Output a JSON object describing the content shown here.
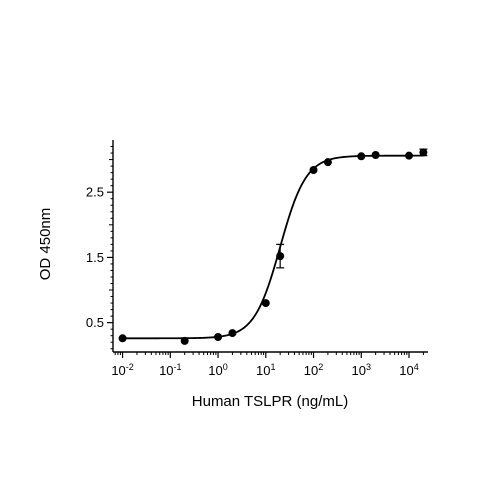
{
  "chart_data": {
    "type": "scatter",
    "title": "",
    "xlabel": "Human TSLPR (ng/mL)",
    "ylabel": "OD 450nm",
    "x_scale": "log",
    "xlim": [
      0.0063,
      25000
    ],
    "ylim": [
      0.05,
      3.3
    ],
    "x_ticks": [
      {
        "value": 0.01,
        "base": "10",
        "exp": "-2"
      },
      {
        "value": 0.1,
        "base": "10",
        "exp": "-1"
      },
      {
        "value": 1,
        "base": "10",
        "exp": "0"
      },
      {
        "value": 10,
        "base": "10",
        "exp": "1"
      },
      {
        "value": 100,
        "base": "10",
        "exp": "2"
      },
      {
        "value": 1000,
        "base": "10",
        "exp": "3"
      },
      {
        "value": 10000,
        "base": "10",
        "exp": "4"
      }
    ],
    "y_ticks": [
      {
        "value": 0.5,
        "label": "0.5"
      },
      {
        "value": 1.5,
        "label": "1.5"
      },
      {
        "value": 2.5,
        "label": "2.5"
      }
    ],
    "grid": false,
    "series": [
      {
        "points": [
          {
            "x": 0.01,
            "y": 0.26,
            "err": 0
          },
          {
            "x": 0.2,
            "y": 0.22,
            "err": 0
          },
          {
            "x": 1,
            "y": 0.28,
            "err": 0
          },
          {
            "x": 2,
            "y": 0.34,
            "err": 0
          },
          {
            "x": 10,
            "y": 0.8,
            "err": 0
          },
          {
            "x": 20,
            "y": 1.52,
            "err": 0.18
          },
          {
            "x": 100,
            "y": 2.84,
            "err": 0
          },
          {
            "x": 200,
            "y": 2.96,
            "err": 0
          },
          {
            "x": 1000,
            "y": 3.05,
            "err": 0
          },
          {
            "x": 2000,
            "y": 3.07,
            "err": 0
          },
          {
            "x": 10000,
            "y": 3.06,
            "err": 0
          },
          {
            "x": 20000,
            "y": 3.11,
            "err": 0.05
          }
        ],
        "fit": {
          "model": "4PL",
          "bottom": 0.26,
          "top": 3.06,
          "ec50": 20,
          "hill": 1.6
        },
        "color": "#000000"
      }
    ]
  }
}
